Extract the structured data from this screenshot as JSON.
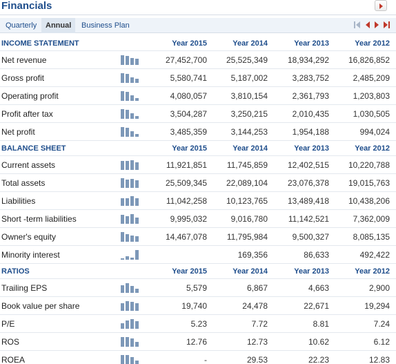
{
  "header": {
    "title": "Financials"
  },
  "tabs": [
    "Quarterly",
    "Annual",
    "Business Plan"
  ],
  "active_tab": "Annual",
  "colors": {
    "accent": "#1f4e8c",
    "arrow": "#c0392b",
    "spark": "#7d98b8"
  },
  "sections": [
    {
      "title": "INCOME STATEMENT",
      "years": [
        "Year 2015",
        "Year 2014",
        "Year 2013",
        "Year 2012"
      ],
      "rows": [
        {
          "label": "Net revenue",
          "values": [
            "27,452,700",
            "25,525,349",
            "18,934,292",
            "16,826,852"
          ],
          "spark": [
            1.0,
            0.93,
            0.69,
            0.61
          ]
        },
        {
          "label": "Gross profit",
          "values": [
            "5,580,741",
            "5,187,002",
            "3,283,752",
            "2,485,209"
          ],
          "spark": [
            1.0,
            0.93,
            0.59,
            0.45
          ]
        },
        {
          "label": "Operating profit",
          "values": [
            "4,080,057",
            "3,810,154",
            "2,361,793",
            "1,203,803"
          ],
          "spark": [
            1.0,
            0.93,
            0.58,
            0.3
          ]
        },
        {
          "label": "Profit after tax",
          "values": [
            "3,504,287",
            "3,250,215",
            "2,010,435",
            "1,030,505"
          ],
          "spark": [
            1.0,
            0.93,
            0.57,
            0.29
          ]
        },
        {
          "label": "Net profit",
          "values": [
            "3,485,359",
            "3,144,253",
            "1,954,188",
            "994,024"
          ],
          "spark": [
            1.0,
            0.9,
            0.56,
            0.29
          ]
        }
      ]
    },
    {
      "title": "BALANCE SHEET",
      "years": [
        "Year 2015",
        "Year 2014",
        "Year 2013",
        "Year 2012"
      ],
      "rows": [
        {
          "label": "Current assets",
          "values": [
            "11,921,851",
            "11,745,859",
            "12,402,515",
            "10,220,788"
          ],
          "spark": [
            0.96,
            0.95,
            1.0,
            0.82
          ]
        },
        {
          "label": "Total assets",
          "values": [
            "25,509,345",
            "22,089,104",
            "23,076,378",
            "19,015,763"
          ],
          "spark": [
            1.0,
            0.87,
            0.9,
            0.75
          ]
        },
        {
          "label": "Liabilities",
          "values": [
            "11,042,258",
            "10,123,765",
            "13,489,418",
            "10,438,206"
          ],
          "spark": [
            0.82,
            0.75,
            1.0,
            0.77
          ]
        },
        {
          "label": "Short -term liabilities",
          "values": [
            "9,995,032",
            "9,016,780",
            "11,142,521",
            "7,362,009"
          ],
          "spark": [
            0.9,
            0.81,
            1.0,
            0.66
          ]
        },
        {
          "label": "Owner's equity",
          "values": [
            "14,467,078",
            "11,795,984",
            "9,500,327",
            "8,085,135"
          ],
          "spark": [
            1.0,
            0.82,
            0.66,
            0.56
          ]
        },
        {
          "label": "Minority interest",
          "values": [
            "",
            "169,356",
            "86,633",
            "492,422"
          ],
          "spark": [
            0.0,
            0.34,
            0.18,
            1.0
          ]
        }
      ]
    },
    {
      "title": "RATIOS",
      "years": [
        "Year 2015",
        "Year 2014",
        "Year 2013",
        "Year 2012"
      ],
      "rows": [
        {
          "label": "Trailing EPS",
          "values": [
            "5,579",
            "6,867",
            "4,663",
            "2,900"
          ],
          "spark": [
            0.81,
            1.0,
            0.68,
            0.42
          ]
        },
        {
          "label": "Book value per share",
          "values": [
            "19,740",
            "24,478",
            "22,671",
            "19,294"
          ],
          "spark": [
            0.81,
            1.0,
            0.93,
            0.79
          ]
        },
        {
          "label": "P/E",
          "values": [
            "5.23",
            "7.72",
            "8.81",
            "7.24"
          ],
          "spark": [
            0.59,
            0.88,
            1.0,
            0.82
          ]
        },
        {
          "label": "ROS",
          "values": [
            "12.76",
            "12.73",
            "10.62",
            "6.12"
          ],
          "spark": [
            1.0,
            1.0,
            0.83,
            0.48
          ]
        },
        {
          "label": "ROEA",
          "values": [
            "-",
            "29.53",
            "22.23",
            "12.83"
          ],
          "spark": [
            1.0,
            1.0,
            0.75,
            0.43
          ]
        }
      ]
    }
  ]
}
